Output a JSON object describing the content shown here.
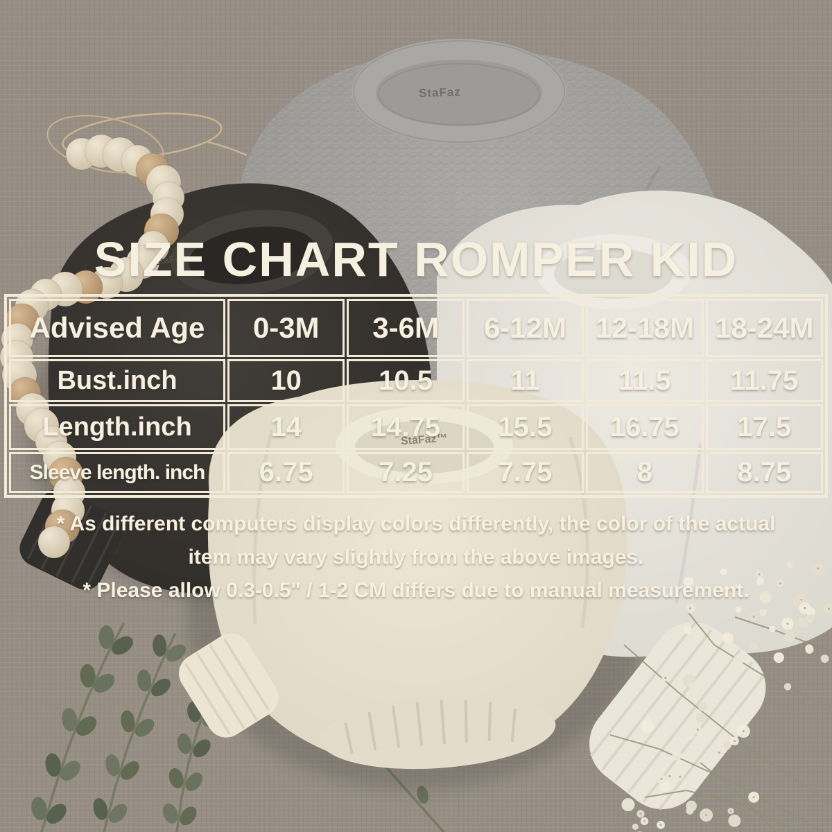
{
  "brand": "StaFaz",
  "brand_with_tm": "StaFaz™",
  "title": "SIZE CHART ROMPER KID",
  "table": {
    "header": [
      "Advised Age",
      "0-3M",
      "3-6M",
      "6-12M",
      "12-18M",
      "18-24M"
    ],
    "rows": [
      {
        "label": "Bust.inch",
        "values": [
          "10",
          "10.5",
          "11",
          "11.5",
          "11.75"
        ]
      },
      {
        "label": "Length.inch",
        "values": [
          "14",
          "14.75",
          "15.5",
          "16.75",
          "17.5"
        ]
      },
      {
        "label": "Sleeve length. inch",
        "values": [
          "6.75",
          "7.25",
          "7.75",
          "8",
          "8.75"
        ]
      }
    ]
  },
  "notes": {
    "lines": [
      "* As different computers display colors differently, the color of the actual",
      "item may vary slightly from the above images.",
      "* Please allow 0.3-0.5\" / 1-2 CM differs due to manual measurement."
    ]
  },
  "chart_data": {
    "type": "table",
    "title": "SIZE CHART ROMPER KID",
    "categories": [
      "0-3M",
      "3-6M",
      "6-12M",
      "12-18M",
      "18-24M"
    ],
    "series": [
      {
        "name": "Bust.inch",
        "values": [
          10,
          10.5,
          11,
          11.5,
          11.75
        ]
      },
      {
        "name": "Length.inch",
        "values": [
          14,
          14.75,
          15.5,
          16.75,
          17.5
        ]
      },
      {
        "name": "Sleeve length. inch",
        "values": [
          6.75,
          7.25,
          7.75,
          8,
          8.75
        ]
      }
    ],
    "units": "inch",
    "row_header": "Advised Age"
  },
  "colors": {
    "overlay_cream": "#f2ebda",
    "fabric_taupe": "#8e8579",
    "romper_gray": "#9a9896",
    "romper_black": "#2a2723",
    "romper_white": "#e6e3db",
    "romper_cream": "#e8e0cf"
  }
}
